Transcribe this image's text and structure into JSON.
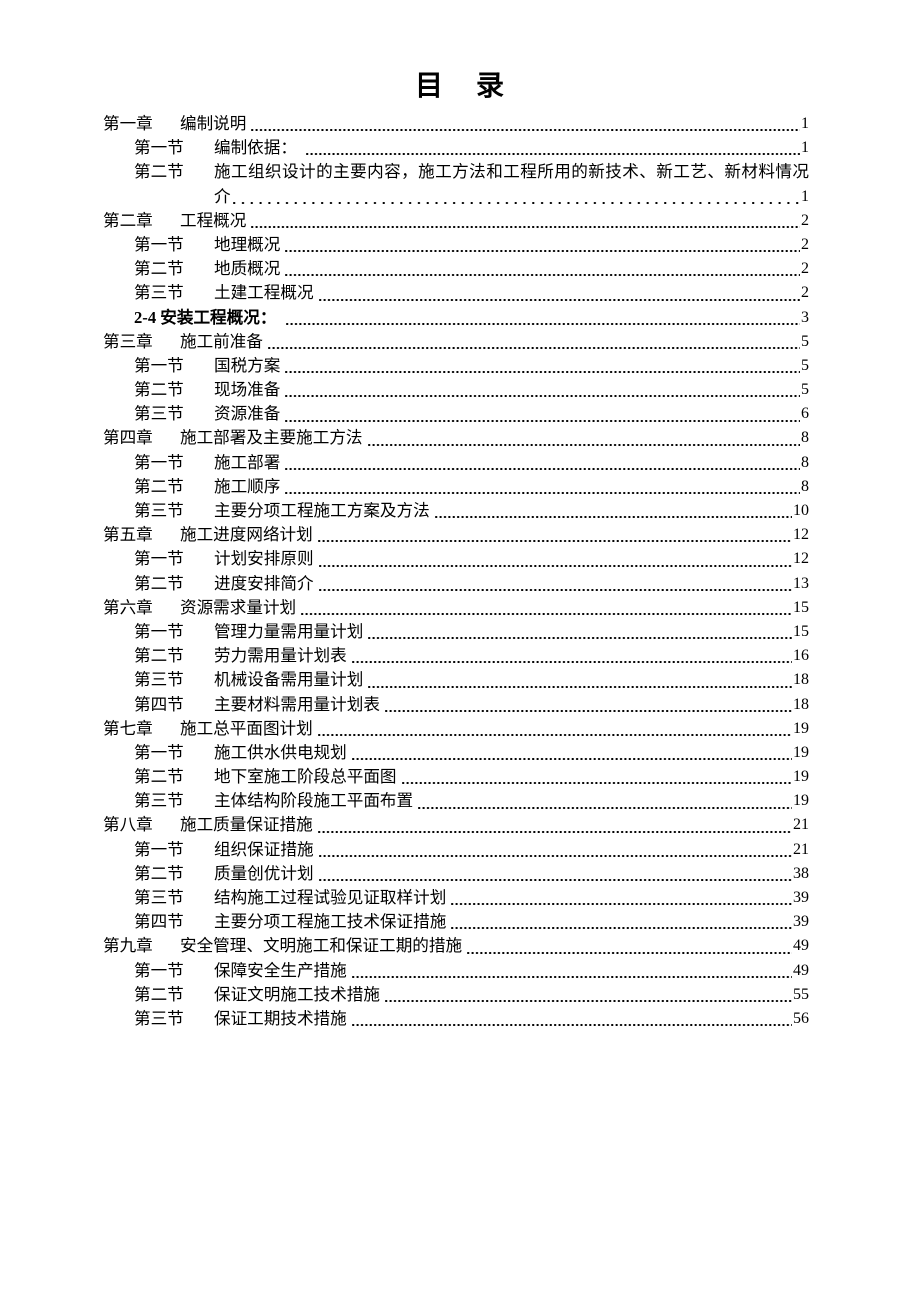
{
  "page": {
    "title": "目 录",
    "background_color": "#ffffff",
    "text_color": "#000000"
  },
  "toc": {
    "rows": [
      {
        "type": "chapter",
        "label": "第一章",
        "title": "编制说明",
        "page": "1"
      },
      {
        "type": "section",
        "label": "第一节",
        "title": "编制依据： ",
        "page": "1"
      },
      {
        "type": "sectionlong",
        "label": "第二节",
        "title": "施工组织设计的主要内容，施工方法和工程所用的新技术、新工艺、新材料情况简",
        "page": null,
        "leader": "none"
      },
      {
        "type": "wrap",
        "label": "",
        "title": "介",
        "page": "1",
        "leader": "spaced"
      },
      {
        "type": "chapter",
        "label": "第二章",
        "title": "工程概况",
        "page": "2"
      },
      {
        "type": "section",
        "label": "第一节",
        "title": "地理概况",
        "page": "2"
      },
      {
        "type": "section",
        "label": "第二节",
        "title": "地质概况",
        "page": "2"
      },
      {
        "type": "section",
        "label": "第三节",
        "title": "土建工程概况",
        "page": "2"
      },
      {
        "type": "sub",
        "label": "",
        "title": "2-4 安装工程概况： ",
        "page": "3"
      },
      {
        "type": "chapter",
        "label": "第三章",
        "title": "施工前准备",
        "page": "5"
      },
      {
        "type": "section",
        "label": "第一节",
        "title": "国税方案",
        "page": "5"
      },
      {
        "type": "section",
        "label": "第二节",
        "title": "现场准备",
        "page": "5"
      },
      {
        "type": "section",
        "label": "第三节",
        "title": "资源准备",
        "page": "6"
      },
      {
        "type": "chapter",
        "label": "第四章",
        "title": "施工部署及主要施工方法",
        "page": "8"
      },
      {
        "type": "section",
        "label": "第一节",
        "title": "施工部署",
        "page": "8"
      },
      {
        "type": "section",
        "label": "第二节",
        "title": "施工顺序",
        "page": "8"
      },
      {
        "type": "section",
        "label": "第三节",
        "title": "主要分项工程施工方案及方法",
        "page": "10"
      },
      {
        "type": "chapter",
        "label": "第五章",
        "title": "施工进度网络计划",
        "page": "12"
      },
      {
        "type": "section",
        "label": "第一节",
        "title": "计划安排原则",
        "page": "12"
      },
      {
        "type": "section",
        "label": "第二节",
        "title": "进度安排简介",
        "page": "13"
      },
      {
        "type": "chapter",
        "label": "第六章",
        "title": "资源需求量计划",
        "page": "15"
      },
      {
        "type": "section",
        "label": "第一节",
        "title": "管理力量需用量计划",
        "page": "15"
      },
      {
        "type": "section",
        "label": "第二节",
        "title": "劳力需用量计划表",
        "page": "16"
      },
      {
        "type": "section",
        "label": "第三节",
        "title": "机械设备需用量计划",
        "page": "18"
      },
      {
        "type": "section",
        "label": "第四节",
        "title": "主要材料需用量计划表",
        "page": "18"
      },
      {
        "type": "chapter",
        "label": "第七章",
        "title": "施工总平面图计划",
        "page": "19"
      },
      {
        "type": "section",
        "label": "第一节",
        "title": "施工供水供电规划",
        "page": "19"
      },
      {
        "type": "section",
        "label": "第二节",
        "title": "地下室施工阶段总平面图",
        "page": "19"
      },
      {
        "type": "section",
        "label": "第三节",
        "title": "主体结构阶段施工平面布置",
        "page": "19"
      },
      {
        "type": "chapter",
        "label": "第八章",
        "title": "施工质量保证措施",
        "page": "21"
      },
      {
        "type": "section",
        "label": "第一节",
        "title": "组织保证措施",
        "page": "21"
      },
      {
        "type": "section",
        "label": "第二节",
        "title": "质量创优计划",
        "page": "38"
      },
      {
        "type": "section",
        "label": "第三节",
        "title": "结构施工过程试验见证取样计划",
        "page": "39"
      },
      {
        "type": "section",
        "label": "第四节",
        "title": "主要分项工程施工技术保证措施",
        "page": "39"
      },
      {
        "type": "chapter",
        "label": "第九章",
        "title": "安全管理、文明施工和保证工期的措施",
        "page": "49"
      },
      {
        "type": "section",
        "label": "第一节",
        "title": "保障安全生产措施",
        "page": "49"
      },
      {
        "type": "section",
        "label": "第二节",
        "title": "保证文明施工技术措施",
        "page": "55"
      },
      {
        "type": "section",
        "label": "第三节",
        "title": "保证工期技术措施",
        "page": "56"
      }
    ]
  }
}
